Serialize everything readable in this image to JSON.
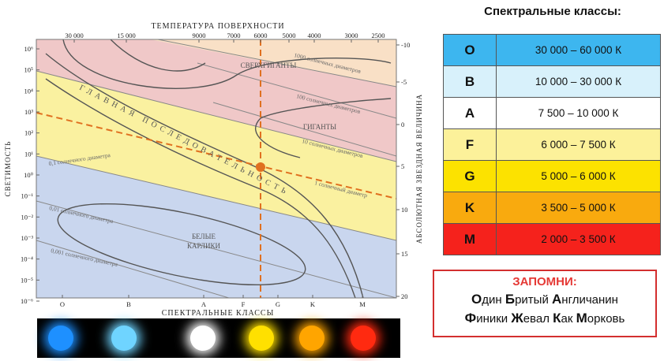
{
  "diagram": {
    "top_axis_title": "ТЕМПЕРАТУРА ПОВЕРХНОСТИ",
    "top_ticks": [
      "30 000",
      "15 000",
      "9000",
      "7000",
      "6000",
      "5000",
      "4000",
      "3000",
      "2500"
    ],
    "bottom_axis_title": "СПЕКТРАЛЬНЫЕ КЛАССЫ",
    "bottom_ticks": [
      "O",
      "B",
      "A",
      "F",
      "G",
      "K",
      "M"
    ],
    "left_axis_title": "СВЕТИМОСТЬ",
    "left_ticks": [
      "10⁶",
      "10⁵",
      "10⁴",
      "10³",
      "10²",
      "10¹",
      "10⁰",
      "10⁻¹",
      "10⁻²",
      "10⁻³",
      "10⁻⁴",
      "10⁻⁵",
      "10⁻⁶"
    ],
    "right_axis_title": "АБСОЛЮТНАЯ ЗВЕЗДНАЯ ВЕЛИЧИНА",
    "right_ticks": [
      "-10",
      "-5",
      "0",
      "5",
      "10",
      "15",
      "20"
    ],
    "region_labels": {
      "supergiants": "СВЕРХГИГАНТЫ",
      "giants": "ГИГАНТЫ",
      "white_dwarfs_1": "БЕЛЫЕ",
      "white_dwarfs_2": "КАРЛИКИ",
      "main_sequence": "ГЛАВНАЯ ПОСЛЕДОВАТЕЛЬНОСТЬ"
    },
    "diameter_labels": {
      "d1000": "1000 солнечных диаметров",
      "d100": "100 солнечных диаметров",
      "d10": "10 солнечных диаметров",
      "d1": "1 солнечный диаметр",
      "d01": "0,1 солнечного диаметра",
      "d001": "0,01 солнечного диаметра",
      "d0001": "0,001 солнечного диаметра"
    },
    "colors": {
      "supergiant_band": "#f9e0c6",
      "giant_band": "#f0c8c8",
      "main_band": "#faf1a0",
      "dwarf_band": "#c9d6ee",
      "marker": "#e07020"
    }
  },
  "spectral_table": {
    "title": "Спектральные классы:",
    "rows": [
      {
        "cls": "O",
        "range": "30 000 – 60 000 К",
        "color": "#3db6ef"
      },
      {
        "cls": "B",
        "range": "10 000 – 30 000 К",
        "color": "#d8f1fb"
      },
      {
        "cls": "A",
        "range": "7 500 – 10 000 К",
        "color": "#ffffff"
      },
      {
        "cls": "F",
        "range": "6 000 – 7 500 К",
        "color": "#fcf19a"
      },
      {
        "cls": "G",
        "range": "5 000 – 6 000 К",
        "color": "#fce200"
      },
      {
        "cls": "K",
        "range": "3 500 – 5 000 К",
        "color": "#f9aa0e"
      },
      {
        "cls": "M",
        "range": "2 000 – 3 500 К",
        "color": "#f5221c"
      }
    ]
  },
  "remember": {
    "title": "ЗАПОМНИ:",
    "line1": [
      "Один",
      "Бритый",
      "Англичанин"
    ],
    "line2": [
      "Финики",
      "Жевал",
      "Как",
      "Морковь"
    ]
  },
  "star_colors": [
    "#1e90ff",
    "#6fd4ff",
    "#ffffff",
    "#ffe000",
    "#ffa500",
    "#ff2a10"
  ]
}
